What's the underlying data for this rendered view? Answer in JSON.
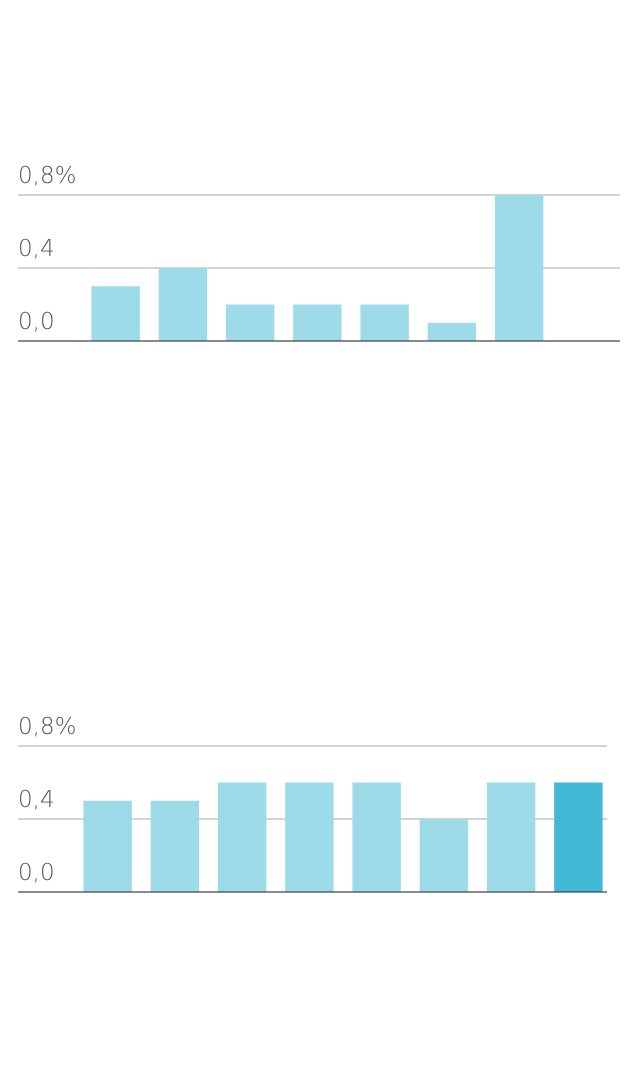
{
  "chart_data": [
    {
      "type": "bar",
      "categories": [
        null,
        null,
        null,
        null,
        null,
        null,
        null,
        null
      ],
      "values": [
        0.3,
        0.4,
        0.2,
        0.2,
        0.2,
        0.1,
        0.8,
        null
      ],
      "colors": [
        "#9ddbe9",
        "#9ddbe9",
        "#9ddbe9",
        "#9ddbe9",
        "#9ddbe9",
        "#9ddbe9",
        "#9ddbe9",
        "#9ddbe9"
      ],
      "ylim": [
        0,
        0.8
      ],
      "yticks": [
        {
          "value": 0,
          "label": "0,0"
        },
        {
          "value": 0.4,
          "label": "0,4"
        },
        {
          "value": 0.8,
          "label": "0,8%"
        }
      ],
      "grid": true
    },
    {
      "type": "bar",
      "categories": [
        null,
        null,
        null,
        null,
        null,
        null,
        null,
        null
      ],
      "values": [
        0.5,
        0.5,
        0.6,
        0.6,
        0.6,
        0.4,
        0.6,
        0.6
      ],
      "colors": [
        "#9ddbe9",
        "#9ddbe9",
        "#9ddbe9",
        "#9ddbe9",
        "#9ddbe9",
        "#9ddbe9",
        "#9ddbe9",
        "#40b8d6"
      ],
      "ylim": [
        0,
        0.8
      ],
      "yticks": [
        {
          "value": 0,
          "label": "0,0"
        },
        {
          "value": 0.4,
          "label": "0,4"
        },
        {
          "value": 0.8,
          "label": "0,8%"
        }
      ],
      "grid": true
    }
  ]
}
